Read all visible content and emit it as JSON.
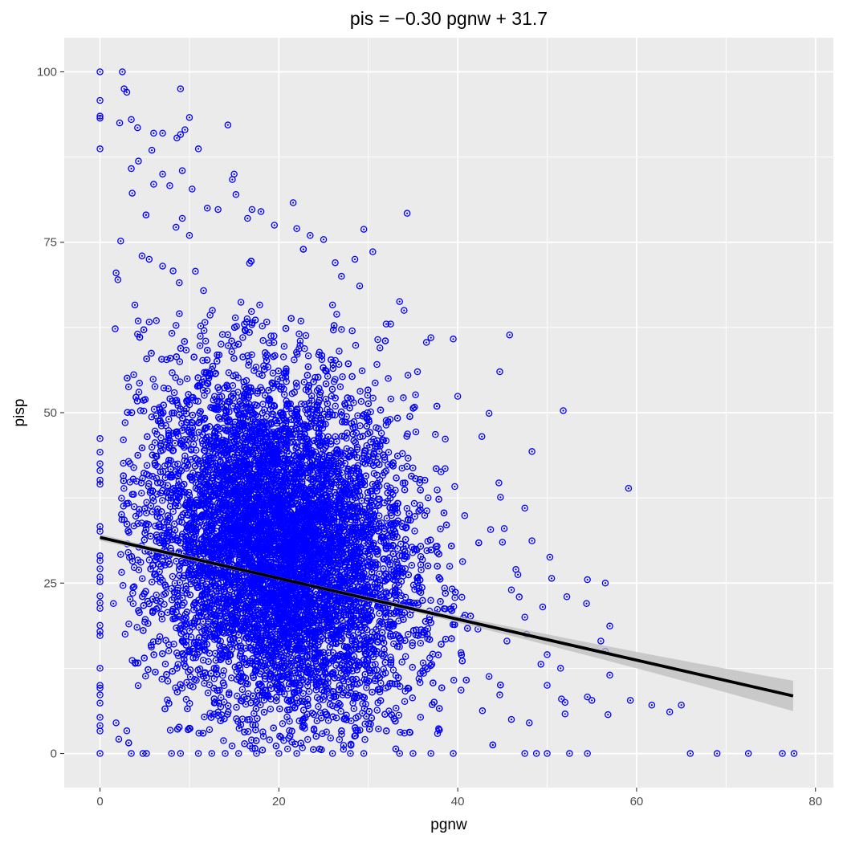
{
  "chart_data": {
    "type": "scatter",
    "title": "pis = −0.30 pgnw + 31.7",
    "xlabel": "pgnw",
    "ylabel": "pisp",
    "xlim": [
      -4,
      82
    ],
    "ylim": [
      -5,
      105
    ],
    "x_ticks": [
      0,
      20,
      40,
      60,
      80
    ],
    "y_ticks": [
      0,
      25,
      50,
      75,
      100
    ],
    "x_tick_labels": [
      "0",
      "20",
      "40",
      "60",
      "80"
    ],
    "y_tick_labels": [
      "0",
      "25",
      "50",
      "75",
      "100"
    ],
    "grid": true,
    "legend": "none",
    "panel_background": "#ebebeb",
    "grid_color": "#ffffff",
    "point_color": "#0000ff",
    "point_shape": "open-circle-with-dot",
    "regression": {
      "slope": -0.3,
      "intercept": 31.7,
      "x_range": [
        0,
        77.5
      ],
      "line_color": "#000000",
      "ci_band_color": "#bebebe"
    },
    "bulk_cloud": {
      "description_center": [
        20,
        30
      ],
      "x_spread": 7.5,
      "y_spread": 12.5,
      "count": 9000
    },
    "points": [
      [
        0,
        100
      ],
      [
        0,
        95.8
      ],
      [
        0,
        93.5
      ],
      [
        0,
        93.2
      ],
      [
        0,
        88.7
      ],
      [
        2.5,
        100
      ],
      [
        2.7,
        97.5
      ],
      [
        3,
        97
      ],
      [
        2.2,
        92.5
      ],
      [
        3.5,
        93
      ],
      [
        4.2,
        91.8
      ],
      [
        6,
        91
      ],
      [
        7,
        91
      ],
      [
        9,
        97.5
      ],
      [
        9.5,
        91.5
      ],
      [
        10,
        93.3
      ],
      [
        8.6,
        90.3
      ],
      [
        9,
        90.8
      ],
      [
        11,
        88.7
      ],
      [
        14.3,
        92.2
      ],
      [
        3.5,
        85.8
      ],
      [
        4.3,
        86.9
      ],
      [
        5.8,
        88.5
      ],
      [
        7,
        85
      ],
      [
        9.2,
        85.5
      ],
      [
        10.3,
        82.8
      ],
      [
        3.6,
        82.2
      ],
      [
        6,
        83.5
      ],
      [
        7.8,
        83.3
      ],
      [
        15,
        85
      ],
      [
        14.8,
        84.2
      ],
      [
        15.2,
        82
      ],
      [
        21.6,
        80.8
      ],
      [
        17,
        79.8
      ],
      [
        18,
        79.5
      ],
      [
        16.5,
        78.5
      ],
      [
        19.5,
        77.5
      ],
      [
        22,
        77
      ],
      [
        23.5,
        76
      ],
      [
        29.5,
        76.9
      ],
      [
        30.5,
        73.6
      ],
      [
        28.5,
        72.5
      ],
      [
        25,
        75.4
      ],
      [
        26.3,
        72
      ],
      [
        27,
        70
      ],
      [
        8.5,
        77.2
      ],
      [
        9.2,
        78.5
      ],
      [
        10,
        76
      ],
      [
        12,
        80
      ],
      [
        13.2,
        79.8
      ],
      [
        1.8,
        70.5
      ],
      [
        2,
        69.5
      ],
      [
        4.7,
        73
      ],
      [
        5.5,
        72.5
      ],
      [
        7,
        71.5
      ],
      [
        1.7,
        62.3
      ],
      [
        3.9,
        65.8
      ],
      [
        5.5,
        63.3
      ],
      [
        6.3,
        63.5
      ],
      [
        8.5,
        62.8
      ],
      [
        26,
        65.8
      ],
      [
        27,
        62.2
      ],
      [
        28.2,
        62
      ],
      [
        33.5,
        66.3
      ],
      [
        34,
        65
      ],
      [
        32,
        63
      ],
      [
        32.5,
        63
      ],
      [
        37,
        61
      ],
      [
        36.5,
        60.3
      ],
      [
        39.5,
        60.8
      ],
      [
        45.8,
        61.4
      ],
      [
        35.5,
        56
      ],
      [
        40,
        52.4
      ],
      [
        44.7,
        56
      ],
      [
        31.3,
        59.5
      ],
      [
        51.8,
        50.3
      ],
      [
        43.5,
        49.9
      ],
      [
        42.7,
        46.5
      ],
      [
        37.5,
        46.8
      ],
      [
        48.3,
        44.3
      ],
      [
        0,
        46.2
      ],
      [
        0,
        44.2
      ],
      [
        0,
        42.5
      ],
      [
        0,
        41.5
      ],
      [
        0,
        40.1
      ],
      [
        0,
        39.5
      ],
      [
        0,
        33.3
      ],
      [
        0,
        32.6
      ],
      [
        0,
        29
      ],
      [
        0,
        28.3
      ],
      [
        0,
        27.1
      ],
      [
        0,
        25.9
      ],
      [
        0,
        25.2
      ],
      [
        0,
        23.1
      ],
      [
        0,
        22.1
      ],
      [
        0,
        21.3
      ],
      [
        0,
        18.8
      ],
      [
        0,
        17.9
      ],
      [
        0,
        17.3
      ],
      [
        0,
        12.5
      ],
      [
        0,
        10
      ],
      [
        0,
        9.6
      ],
      [
        0,
        8.6
      ],
      [
        0,
        7.4
      ],
      [
        0,
        5.3
      ],
      [
        0,
        4.1
      ],
      [
        0,
        3.3
      ],
      [
        0,
        0
      ],
      [
        1.5,
        22
      ],
      [
        1.8,
        4.5
      ],
      [
        2.1,
        2.1
      ],
      [
        3.5,
        0
      ],
      [
        4.8,
        0
      ],
      [
        5.2,
        0
      ],
      [
        8,
        0
      ],
      [
        9,
        0
      ],
      [
        11,
        0
      ],
      [
        12.5,
        0
      ],
      [
        14,
        0
      ],
      [
        15.5,
        0
      ],
      [
        17.5,
        0
      ],
      [
        20,
        0
      ],
      [
        22,
        0
      ],
      [
        26,
        0
      ],
      [
        28,
        0
      ],
      [
        29.5,
        0
      ],
      [
        33.5,
        0
      ],
      [
        35,
        0
      ],
      [
        37,
        0
      ],
      [
        39.5,
        0
      ],
      [
        47.5,
        0
      ],
      [
        48.8,
        0
      ],
      [
        50,
        0
      ],
      [
        52.5,
        0
      ],
      [
        54.5,
        0
      ],
      [
        66,
        0
      ],
      [
        69,
        0
      ],
      [
        72.5,
        0
      ],
      [
        76.3,
        0
      ],
      [
        77.6,
        0
      ],
      [
        59.1,
        38.9
      ],
      [
        56.5,
        25
      ],
      [
        54.5,
        25.5
      ],
      [
        52.2,
        23
      ],
      [
        50.5,
        25.7
      ],
      [
        50.3,
        28.8
      ],
      [
        49.5,
        21.5
      ],
      [
        54.4,
        22
      ],
      [
        57,
        18.7
      ],
      [
        56.5,
        15
      ],
      [
        56,
        16.5
      ],
      [
        57,
        11.5
      ],
      [
        59.3,
        7.8
      ],
      [
        61.7,
        7.1
      ],
      [
        63.7,
        6.1
      ],
      [
        65,
        7.1
      ],
      [
        55,
        7.8
      ],
      [
        54.5,
        8.3
      ],
      [
        56.8,
        5.7
      ],
      [
        52,
        7.5
      ],
      [
        51.6,
        8
      ],
      [
        50,
        14.5
      ],
      [
        47.5,
        20
      ],
      [
        46,
        24
      ],
      [
        45,
        31
      ],
      [
        44.6,
        39.7
      ],
      [
        45.2,
        33
      ],
      [
        46.5,
        27
      ],
      [
        48.3,
        31.2
      ],
      [
        47.5,
        36
      ],
      [
        49.3,
        13.1
      ],
      [
        50,
        10
      ],
      [
        51.5,
        12.5
      ],
      [
        52,
        5.8
      ],
      [
        48,
        4.5
      ],
      [
        46,
        5
      ],
      [
        44.7,
        8.6
      ],
      [
        43.5,
        11.3
      ],
      [
        45.5,
        16.5
      ],
      [
        47.7,
        17.5
      ]
    ]
  }
}
